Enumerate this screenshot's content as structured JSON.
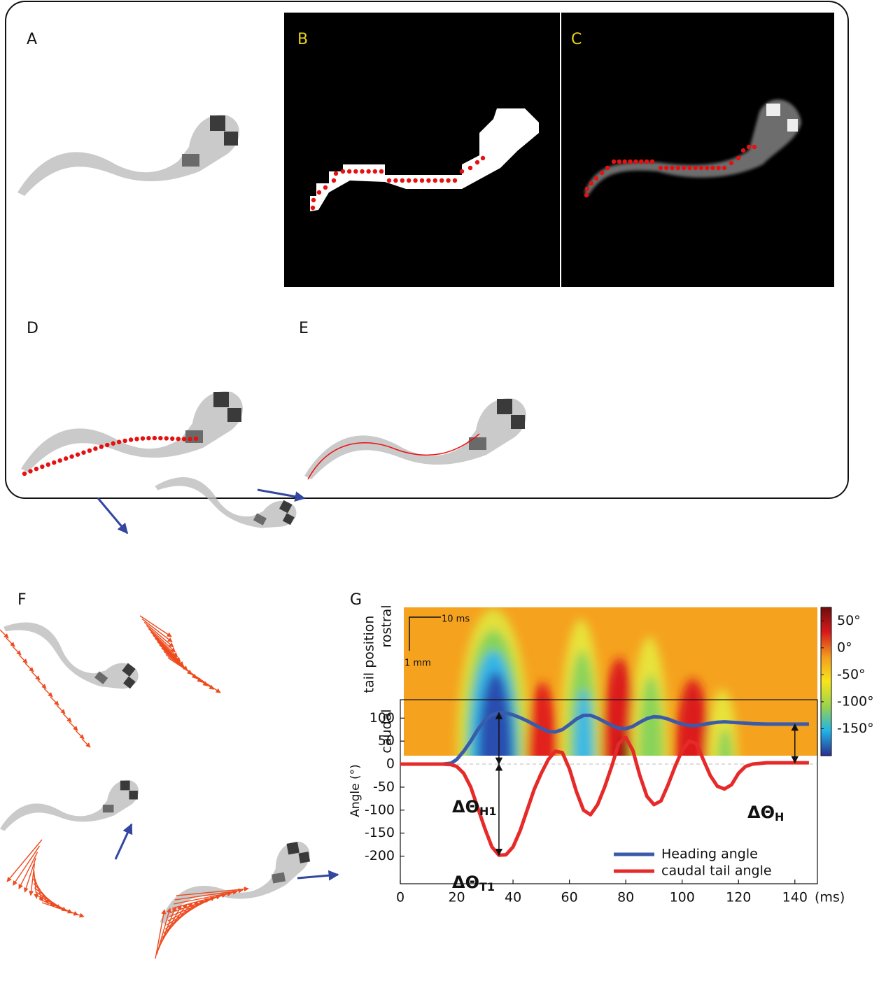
{
  "panel_labels": [
    "A",
    "B",
    "C",
    "D",
    "E",
    "F",
    "G"
  ],
  "chart_data": [
    {
      "type": "heatmap",
      "y_label": "tail position",
      "y_top_label": "rostral",
      "y_bottom_label": "caudal",
      "scale_bar_x": "10 ms",
      "scale_bar_y": "1 mm",
      "colorbar_lim": [
        -200,
        75
      ],
      "colorbar_ticks": [
        {
          "value": 50,
          "label": "50°"
        },
        {
          "value": 0,
          "label": "0°"
        },
        {
          "value": -50,
          "label": "-50°"
        },
        {
          "value": -100,
          "label": "-100°"
        },
        {
          "value": -150,
          "label": "-150°"
        }
      ],
      "colormap": [
        "#2b2f8f",
        "#1fb4e8",
        "#9ad24c",
        "#f7e51c",
        "#f39c1d",
        "#d7191c",
        "#6e0d0d"
      ]
    },
    {
      "type": "line",
      "x_label": "(ms)",
      "y_label": "Angle (°)",
      "x": [
        0,
        5,
        10,
        15,
        18,
        20,
        22.5,
        25,
        27.5,
        30,
        32.5,
        35,
        37.5,
        40,
        42.5,
        45,
        47.5,
        50,
        52.5,
        55,
        57.5,
        60,
        62.5,
        65,
        67.5,
        70,
        72.5,
        75,
        77.5,
        80,
        82.5,
        85,
        87.5,
        90,
        92.5,
        95,
        97.5,
        100,
        102.5,
        105,
        107.5,
        110,
        112.5,
        115,
        117.5,
        120,
        122.5,
        125,
        130,
        135,
        140,
        145
      ],
      "series": [
        {
          "name": "Heading angle",
          "color": "#3a5ba9",
          "values": [
            0,
            0,
            0,
            0,
            2,
            10,
            28,
            50,
            75,
            95,
            107,
            112,
            111,
            107,
            101,
            94,
            86,
            78,
            71,
            70,
            75,
            86,
            98,
            106,
            106,
            100,
            92,
            84,
            78,
            77,
            82,
            91,
            99,
            103,
            102,
            98,
            92,
            87,
            84,
            84,
            86,
            89,
            91,
            92,
            91,
            90,
            89,
            88,
            87,
            87,
            87,
            87
          ]
        },
        {
          "name": "caudal tail angle",
          "color": "#e62a2a",
          "values": [
            0,
            0,
            0,
            0,
            -1,
            -5,
            -20,
            -50,
            -95,
            -140,
            -180,
            -198,
            -197,
            -180,
            -145,
            -100,
            -55,
            -20,
            10,
            28,
            25,
            -10,
            -60,
            -100,
            -110,
            -88,
            -50,
            -5,
            45,
            58,
            30,
            -25,
            -70,
            -88,
            -80,
            -45,
            -5,
            30,
            50,
            45,
            10,
            -25,
            -48,
            -54,
            -45,
            -20,
            -5,
            0,
            3,
            3,
            3,
            3
          ]
        }
      ],
      "xlim": [
        0,
        148
      ],
      "ylim": [
        -260,
        140
      ],
      "xticks": [
        0,
        20,
        40,
        60,
        80,
        100,
        120,
        140
      ],
      "yticks": [
        100,
        50,
        0,
        -50,
        -100,
        -150,
        -200
      ],
      "annotations": [
        {
          "text": "ΔΘ",
          "sub": "H1"
        },
        {
          "text": "ΔΘ",
          "sub": "T1"
        },
        {
          "text": "ΔΘ",
          "sub": "H"
        }
      ],
      "legend": "lower right",
      "grid": false
    }
  ]
}
